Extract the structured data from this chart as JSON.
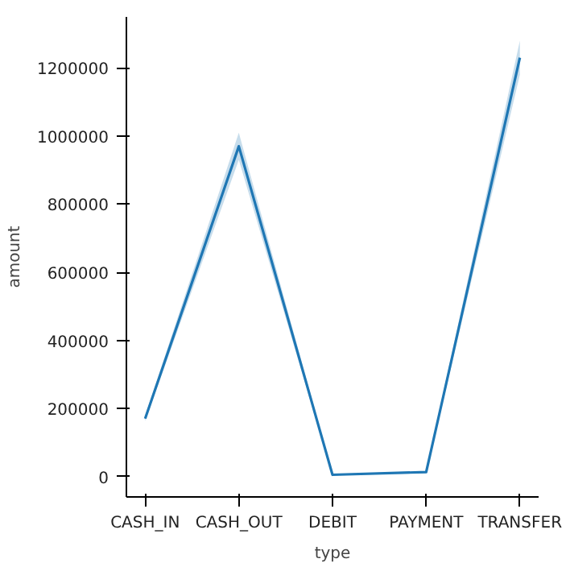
{
  "chart_data": {
    "type": "line",
    "xlabel": "type",
    "ylabel": "amount",
    "categories": [
      "CASH_IN",
      "CASH_OUT",
      "DEBIT",
      "PAYMENT",
      "TRANSFER"
    ],
    "series": [
      {
        "color": "#1f77b4",
        "values": [
          170000,
          970000,
          5000,
          13000,
          1230000
        ],
        "lower": [
          163000,
          930000,
          3000,
          10000,
          1180000
        ],
        "upper": [
          178000,
          1010000,
          7000,
          16000,
          1280000
        ]
      }
    ],
    "ylim": [
      -60000,
      1350000
    ],
    "yticks": [
      0,
      200000,
      400000,
      600000,
      800000,
      1000000,
      1200000
    ],
    "grid": false,
    "marker": "none",
    "line_style": "solid"
  }
}
